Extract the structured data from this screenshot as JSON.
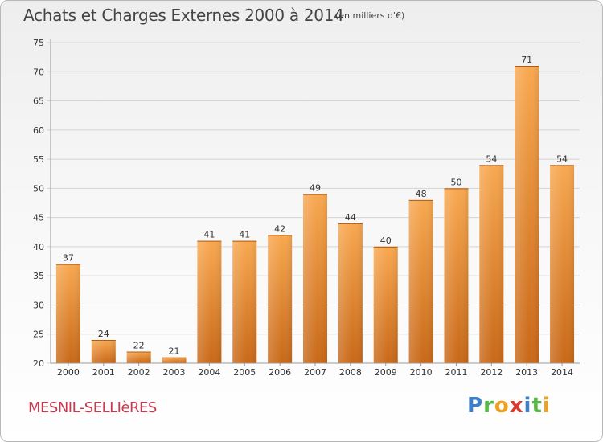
{
  "header": {
    "title": "Achats et Charges Externes 2000 à 2014",
    "subtitle": "(en milliers d'€)"
  },
  "footer": {
    "commune": "MESNIL-SELLIèRES",
    "logo": {
      "letters": [
        {
          "char": "P",
          "color": "#3f7fc8"
        },
        {
          "char": "r",
          "color": "#58b848"
        },
        {
          "char": "o",
          "color": "#f0a020"
        },
        {
          "char": "x",
          "color": "#d83a30"
        },
        {
          "char": "i",
          "color": "#3f7fc8"
        },
        {
          "char": "t",
          "color": "#58b848"
        },
        {
          "char": "i",
          "color": "#f0a020"
        }
      ]
    }
  },
  "colors": {
    "bar_top": "#f8a850",
    "bar_bottom": "#c86818",
    "grid": "#d4d4d4",
    "axis_text": "#333333"
  },
  "chart_data": {
    "type": "bar",
    "categories": [
      "2000",
      "2001",
      "2002",
      "2003",
      "2004",
      "2005",
      "2006",
      "2007",
      "2008",
      "2009",
      "2010",
      "2011",
      "2012",
      "2013",
      "2014"
    ],
    "values": [
      37,
      24,
      22,
      21,
      41,
      41,
      42,
      49,
      44,
      40,
      48,
      50,
      54,
      71,
      54
    ],
    "title": "Achats et Charges Externes 2000 à 2014",
    "ylim": [
      20,
      75
    ],
    "yticks": [
      20,
      25,
      30,
      35,
      40,
      45,
      50,
      55,
      60,
      65,
      70,
      75
    ],
    "grid": true,
    "data_labels": true
  }
}
